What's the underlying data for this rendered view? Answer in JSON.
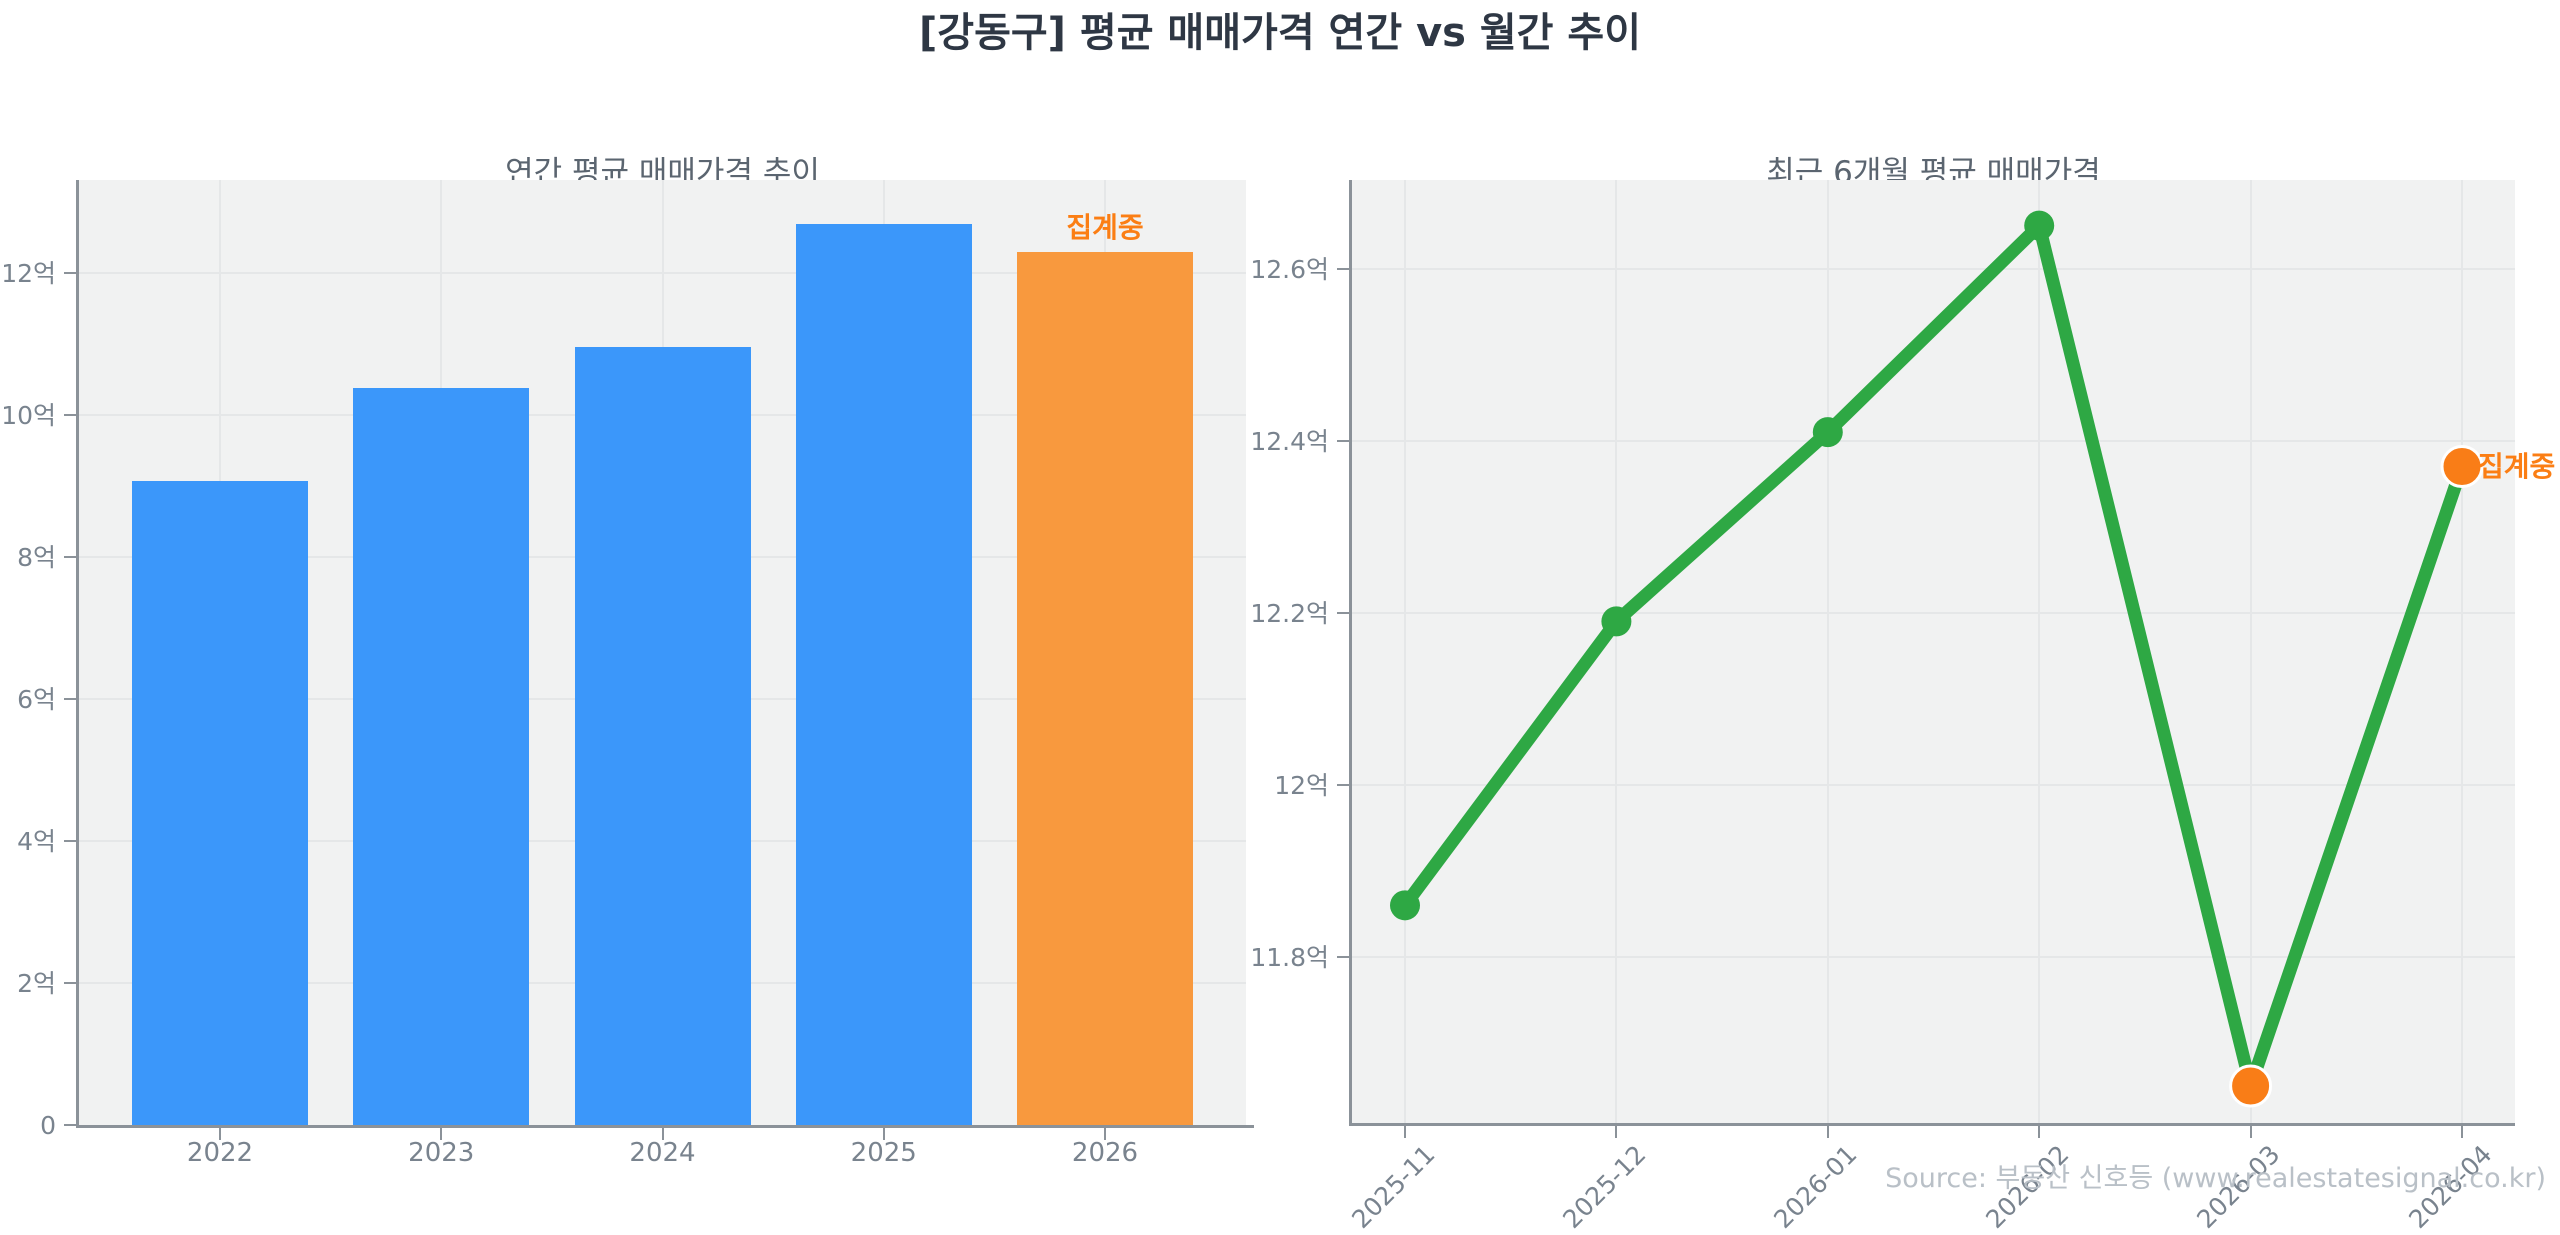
{
  "page": {
    "title": "[강동구] 평균 매매가격 연간 vs 월간 추이",
    "source": "Source: 부동산 신호등 (www.realestatesignal.co.kr)"
  },
  "colors": {
    "bar_blue": "#3b97fa",
    "bar_orange": "#f8993e",
    "line_green": "#2ea844",
    "dot_orange": "#f97d17",
    "annotation_orange": "#fb7e14",
    "plot_bg": "#f1f2f2",
    "grid": "#e5e7e8",
    "axis": "#8b9299",
    "tick_label": "#79838e",
    "chart_title": "#5b6570",
    "main_title": "#2e3744",
    "source_gray": "#b9c0c7"
  },
  "chart_data": [
    {
      "type": "bar",
      "title": "연간 평균 매매가격 추이",
      "categories": [
        "2022",
        "2023",
        "2024",
        "2025",
        "2026"
      ],
      "values": [
        9.07,
        10.38,
        10.96,
        12.69,
        12.3
      ],
      "unit": "억",
      "ylim": [
        0,
        13.31
      ],
      "yticks": [
        0,
        2,
        4,
        6,
        8,
        10,
        12
      ],
      "ytick_labels": [
        "0",
        "2억",
        "4억",
        "6억",
        "8억",
        "10억",
        "12억"
      ],
      "grid": true,
      "highlight_index": 4,
      "annotation": {
        "text": "집계중",
        "index": 4
      }
    },
    {
      "type": "line",
      "title": "최근 6개월 평균 매매가격",
      "categories": [
        "2025-11",
        "2025-12",
        "2026-01",
        "2026-02",
        "2026-03",
        "2026-04"
      ],
      "values": [
        11.86,
        12.19,
        12.41,
        12.65,
        11.65,
        12.37
      ],
      "unit": "억",
      "ylim": [
        11.607,
        12.703
      ],
      "yticks": [
        11.8,
        12.0,
        12.2,
        12.4,
        12.6
      ],
      "ytick_labels": [
        "11.8억",
        "12억",
        "12.2억",
        "12.4억",
        "12.6억"
      ],
      "grid": true,
      "highlight_indices": [
        4,
        5
      ],
      "annotation": {
        "text": "집계중",
        "index": 5
      }
    }
  ]
}
